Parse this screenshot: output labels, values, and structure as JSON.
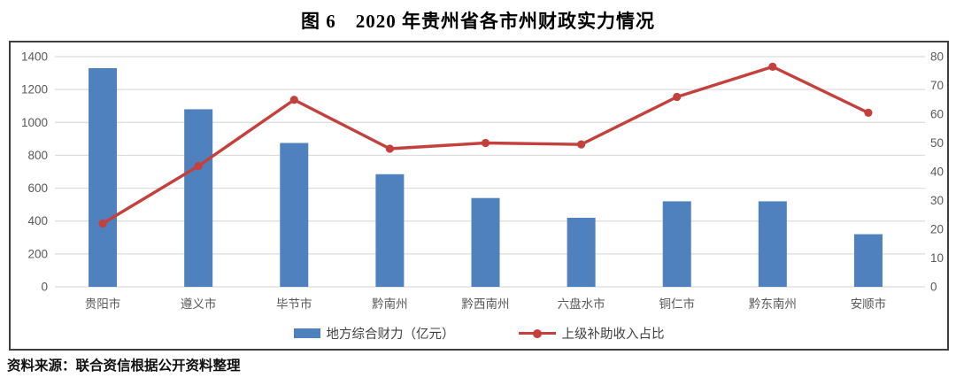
{
  "page": {
    "title": "图 6　2020 年贵州省各市州财政实力情况",
    "source": "资料来源：联合资信根据公开资料整理"
  },
  "colors": {
    "bar": "#4E81BD",
    "line": "#C4403D",
    "grid": "#DCDCDC",
    "axis_text": "#595959",
    "frame_border": "#3F3F3F"
  },
  "chart_data": {
    "type": "bar",
    "subtype": "bar-line-combo",
    "title": "图 6　2020 年贵州省各市州财政实力情况",
    "categories": [
      "贵阳市",
      "遵义市",
      "毕节市",
      "黔南州",
      "黔西南州",
      "六盘水市",
      "铜仁市",
      "黔东南州",
      "安顺市"
    ],
    "series": [
      {
        "name": "地方综合财力（亿元）",
        "type": "bar",
        "axis": "left",
        "color": "#4E81BD",
        "values": [
          1330,
          1080,
          875,
          685,
          540,
          420,
          520,
          520,
          320
        ]
      },
      {
        "name": "上级补助收入占比",
        "type": "line",
        "axis": "right",
        "color": "#C4403D",
        "values": [
          22,
          42,
          65,
          48,
          50,
          49.5,
          66,
          76.5,
          60.5
        ]
      }
    ],
    "left_axis": {
      "min": 0,
      "max": 1400,
      "ticks": [
        0,
        200,
        400,
        600,
        800,
        1000,
        1200,
        1400
      ]
    },
    "right_axis": {
      "min": 0,
      "max": 80,
      "ticks": [
        0,
        10,
        20,
        30,
        40,
        50,
        60,
        70,
        80
      ]
    },
    "grid": true,
    "legend_position": "bottom",
    "xlabel": "",
    "ylabel": ""
  }
}
